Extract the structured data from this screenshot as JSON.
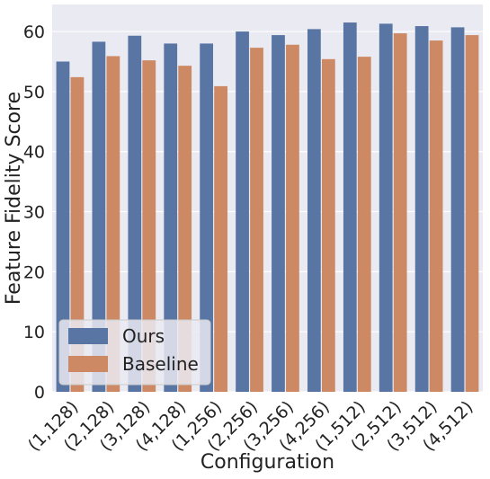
{
  "chart_data": {
    "type": "bar",
    "xlabel": "Configuration",
    "ylabel": "Feature Fidelity Score",
    "categories": [
      "(1,128)",
      "(2,128)",
      "(3,128)",
      "(4,128)",
      "(1,256)",
      "(2,256)",
      "(3,256)",
      "(4,256)",
      "(1,512)",
      "(2,512)",
      "(3,512)",
      "(4,512)"
    ],
    "series": [
      {
        "name": "Ours",
        "color": "#5975a4",
        "values": [
          55.0,
          58.3,
          59.3,
          58.0,
          58.0,
          60.0,
          59.4,
          60.4,
          61.5,
          61.3,
          60.9,
          60.7
        ]
      },
      {
        "name": "Baseline",
        "color": "#cc8963",
        "values": [
          52.4,
          55.9,
          55.2,
          54.3,
          50.9,
          57.3,
          57.8,
          55.4,
          55.8,
          59.7,
          58.5,
          59.4
        ]
      }
    ],
    "ylim": [
      0,
      64.5
    ],
    "yticks": [
      0,
      10,
      20,
      30,
      40,
      50,
      60
    ],
    "grid": true,
    "legend_position": "lower-left",
    "background": "#eaeaf2"
  }
}
